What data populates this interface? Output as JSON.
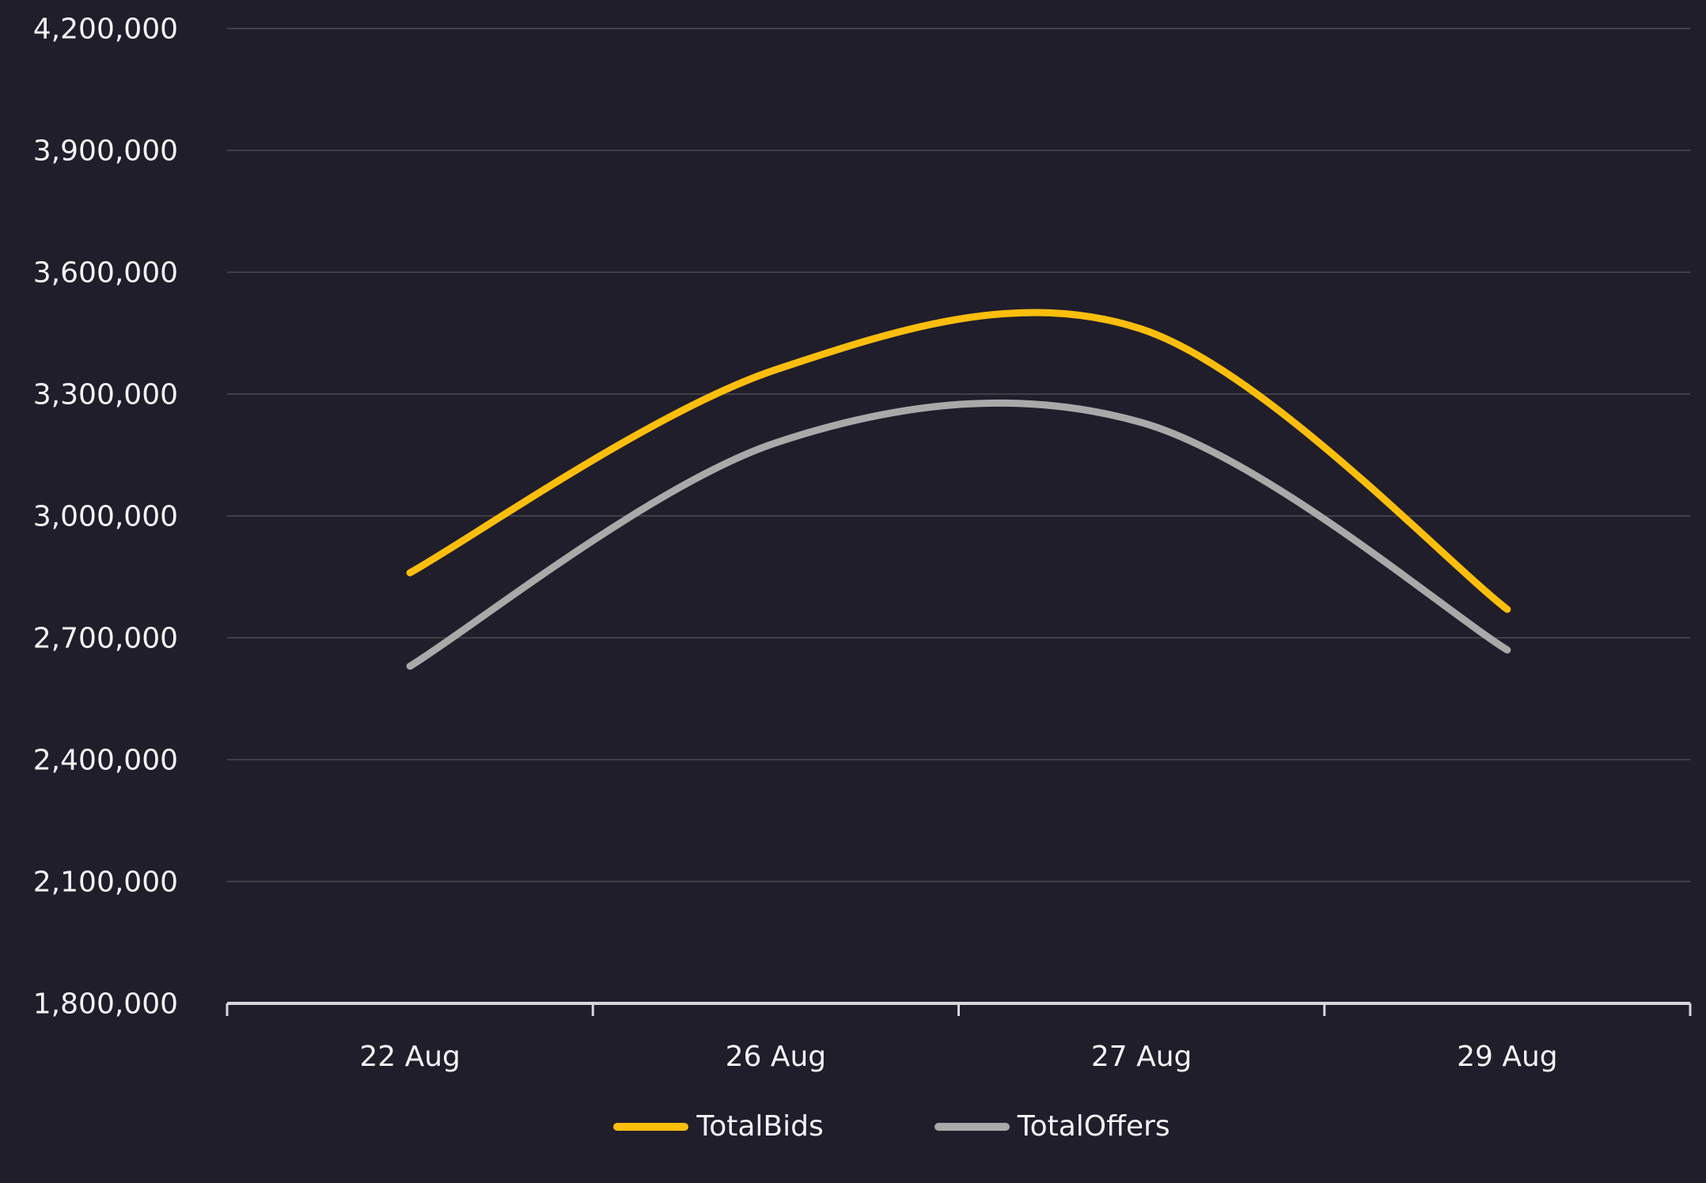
{
  "chart_data": {
    "type": "line",
    "smooth": true,
    "title": "",
    "xlabel": "",
    "ylabel": "",
    "categories": [
      "22 Aug",
      "26 Aug",
      "27 Aug",
      "29 Aug"
    ],
    "series": [
      {
        "name": "TotalBids",
        "color": "#FBBE0C",
        "values": [
          2860000,
          3360000,
          3460000,
          2770000
        ]
      },
      {
        "name": "TotalOffers",
        "color": "#A9A9A9",
        "values": [
          2630000,
          3180000,
          3230000,
          2670000
        ]
      }
    ],
    "ylim": [
      1800000,
      4200000
    ],
    "ytick_step": 300000,
    "yticks": [
      "4,200,000",
      "3,900,000",
      "3,600,000",
      "3,300,000",
      "3,000,000",
      "2,700,000",
      "2,400,000",
      "2,100,000",
      "1,800,000"
    ],
    "grid": "horizontal",
    "legend_position": "bottom"
  },
  "colors": {
    "background": "#201E2B",
    "gridline": "#403F45",
    "axis": "#D7D6DC",
    "text": "#F5F4F7"
  }
}
